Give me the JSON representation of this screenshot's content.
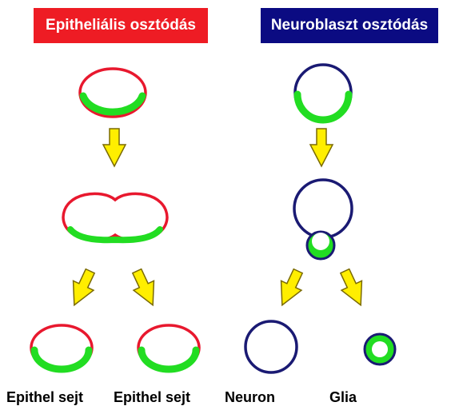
{
  "panels": {
    "epithelial": {
      "title": "Epitheliális osztódás",
      "title_bg": "#ee1c24",
      "outline_color": "#e8182e",
      "labels": [
        "Epithel sejt",
        "Epithel sejt"
      ]
    },
    "neuroblast": {
      "title": "Neuroblaszt osztódás",
      "title_bg": "#0b0b82",
      "outline_color": "#1a1a73",
      "labels": [
        "Neuron",
        "Glia"
      ]
    }
  },
  "colors": {
    "apical_marker": "#22dd22",
    "arrow_fill": "#ffee00",
    "arrow_stroke": "#7a6a00"
  }
}
